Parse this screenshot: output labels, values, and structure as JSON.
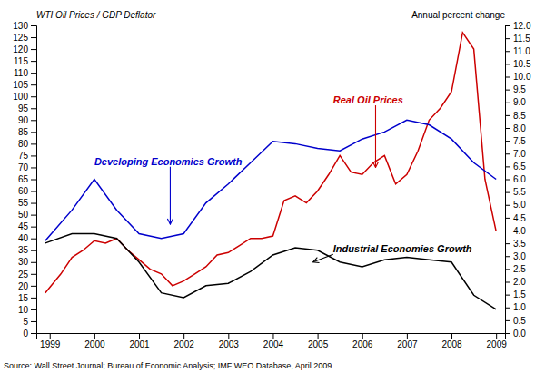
{
  "chart_data": {
    "type": "line",
    "ylabel": "WTI Oil Prices / GDP Deflator",
    "y2label": "Annual percent change",
    "source": "Source: Wall Street Journal; Bureau of Economic Analysis; IMF WEO Database, April 2009.",
    "xlim": [
      1998.7,
      2009.2
    ],
    "xticks": [
      1999,
      2000,
      2001,
      2002,
      2003,
      2004,
      2005,
      2006,
      2007,
      2008,
      2009
    ],
    "ylim": [
      0,
      130
    ],
    "yticks": [
      0,
      5,
      10,
      15,
      20,
      25,
      30,
      35,
      40,
      45,
      50,
      55,
      60,
      65,
      70,
      75,
      80,
      85,
      90,
      95,
      100,
      105,
      110,
      115,
      120,
      125,
      130
    ],
    "y2lim": [
      0.0,
      12.0
    ],
    "y2ticks": [
      {
        "value": 0,
        "label": "0.0"
      },
      0.5,
      {
        "value": 1,
        "label": "1.0"
      },
      1.5,
      {
        "value": 2,
        "label": "2.0"
      },
      2.5,
      {
        "value": 3,
        "label": "3.0"
      },
      3.5,
      {
        "value": 4,
        "label": "4.0"
      },
      4.5,
      {
        "value": 5,
        "label": "5.0"
      },
      5.5,
      {
        "value": 6,
        "label": "6.0"
      },
      6.5,
      {
        "value": 7,
        "label": "7.0"
      },
      7.5,
      {
        "value": 8,
        "label": "8.0"
      },
      8.5,
      {
        "value": 9,
        "label": "9.0"
      },
      9.5,
      {
        "value": 10,
        "label": "10.0"
      },
      10.5,
      {
        "value": 11,
        "label": "11.0"
      },
      11.5,
      {
        "value": 12,
        "label": "12.0"
      }
    ],
    "grid": false,
    "series": [
      {
        "color": "#cc0000",
        "x": [
          1998.9,
          1999.25,
          1999.5,
          1999.75,
          2000.0,
          2000.25,
          2000.5,
          2000.75,
          2001.0,
          2001.25,
          2001.5,
          2001.75,
          2002.0,
          2002.25,
          2002.5,
          2002.75,
          2003.0,
          2003.25,
          2003.5,
          2003.75,
          2004.0,
          2004.25,
          2004.5,
          2004.75,
          2005.0,
          2005.25,
          2005.5,
          2005.75,
          2006.0,
          2006.25,
          2006.5,
          2006.75,
          2007.0,
          2007.25,
          2007.5,
          2007.75,
          2008.0,
          2008.25,
          2008.5,
          2008.75,
          2009.0
        ],
        "values": [
          17,
          25,
          32,
          35,
          39,
          38,
          40,
          35,
          31,
          27,
          25,
          20,
          22,
          25,
          28,
          33,
          34,
          37,
          40,
          40,
          41,
          56,
          58,
          55,
          60,
          67,
          75,
          68,
          67,
          72,
          75,
          63,
          67,
          77,
          90,
          95,
          102,
          127,
          120,
          65,
          43
        ]
      },
      {
        "color": "#0000cc",
        "x": [
          1998.9,
          1999.5,
          2000.0,
          2000.5,
          2001.0,
          2001.5,
          2002.0,
          2002.5,
          2003.0,
          2003.5,
          2004.0,
          2004.5,
          2005.0,
          2005.5,
          2006.0,
          2006.5,
          2007.0,
          2007.5,
          2008.0,
          2008.5,
          2009.0
        ],
        "values": [
          39,
          52,
          65,
          52,
          42,
          40,
          42,
          55,
          63,
          72,
          81,
          80,
          78,
          77,
          82,
          85,
          90,
          88,
          82,
          72,
          65
        ]
      },
      {
        "color": "#000000",
        "x": [
          1998.9,
          1999.5,
          2000.0,
          2000.5,
          2001.0,
          2001.5,
          2002.0,
          2002.5,
          2003.0,
          2003.5,
          2004.0,
          2004.5,
          2005.0,
          2005.5,
          2006.0,
          2006.5,
          2007.0,
          2007.5,
          2008.0,
          2008.5,
          2009.0
        ],
        "values": [
          38,
          42,
          42,
          40,
          30,
          17,
          15,
          20,
          21,
          26,
          33,
          36,
          35,
          30,
          28,
          31,
          32,
          31,
          30,
          16,
          10
        ]
      }
    ],
    "annotations": [
      {
        "text": "Real Oil Prices",
        "x": 2006.3,
        "y": 70,
        "text_x": 2005.35,
        "text_y": 97,
        "color": "#cc0000"
      },
      {
        "text": "Developing Economies Growth",
        "x": 2001.7,
        "y": 46,
        "text_x": 2000.0,
        "text_y": 71,
        "color": "#0000cc"
      },
      {
        "text": "Industrial Economies Growth",
        "x": 2004.9,
        "y": 30,
        "text_x": 2005.35,
        "text_y": 34,
        "color": "#000000"
      }
    ]
  }
}
